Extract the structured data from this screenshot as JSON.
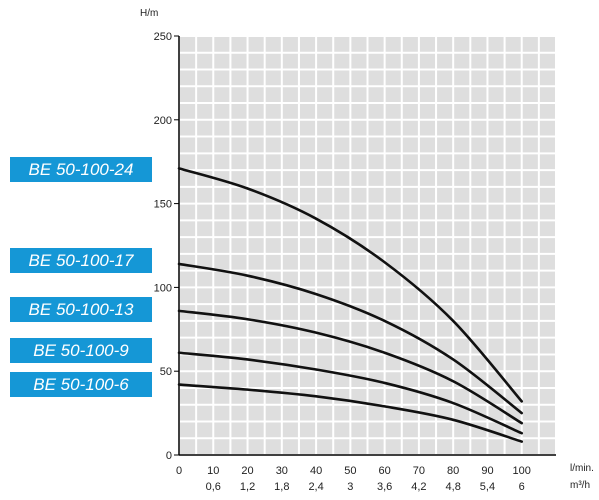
{
  "chart_data": {
    "type": "line",
    "y_unit": "H/m",
    "x_unit_primary": "l/min.",
    "x_unit_secondary": "m³/h",
    "ylim": [
      0,
      250
    ],
    "xlim": [
      0,
      110
    ],
    "y_ticks": [
      "0",
      "50",
      "100",
      "150",
      "200",
      "250"
    ],
    "x_ticks_primary": [
      "0",
      "10",
      "20",
      "30",
      "40",
      "50",
      "60",
      "70",
      "80",
      "90",
      "100"
    ],
    "x_ticks_secondary": [
      "0,6",
      "1,2",
      "1,8",
      "2,4",
      "3",
      "3,6",
      "4,2",
      "4,8",
      "5,4",
      "6"
    ],
    "grid": true,
    "accent_color": "#1597d6",
    "series": [
      {
        "name": "BE 50-100-24",
        "x": [
          0,
          20,
          40,
          60,
          80,
          100
        ],
        "y": [
          171,
          159,
          141,
          115,
          80,
          32
        ]
      },
      {
        "name": "BE 50-100-17",
        "x": [
          0,
          20,
          40,
          60,
          80,
          100
        ],
        "y": [
          114,
          107,
          96,
          80,
          57,
          25
        ]
      },
      {
        "name": "BE 50-100-13",
        "x": [
          0,
          20,
          40,
          60,
          80,
          100
        ],
        "y": [
          86,
          81,
          73,
          61,
          44,
          19
        ]
      },
      {
        "name": "BE 50-100-9",
        "x": [
          0,
          20,
          40,
          60,
          80,
          100
        ],
        "y": [
          61,
          57,
          51,
          43,
          31,
          13
        ]
      },
      {
        "name": "BE 50-100-6",
        "x": [
          0,
          20,
          40,
          60,
          80,
          100
        ],
        "y": [
          42,
          39,
          35,
          29,
          21,
          8
        ]
      }
    ]
  }
}
